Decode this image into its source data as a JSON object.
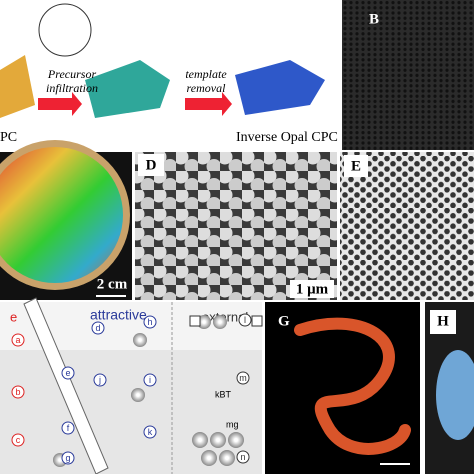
{
  "panel_a": {
    "step_1": [
      "Precursor",
      "infiltration"
    ],
    "step_2": [
      "template",
      "removal"
    ],
    "left_caption": "PC",
    "right_caption": "Inverse Opal CPC"
  },
  "panel_b": {
    "label": "B"
  },
  "panel_c": {
    "scale_bar": "2 cm"
  },
  "panel_d": {
    "label": "D",
    "scale_bar": "1 μm"
  },
  "panel_e": {
    "label": "E"
  },
  "panel_f": {
    "headings": [
      "e",
      "attractive",
      "external"
    ],
    "letters": [
      "a",
      "b",
      "c",
      "d",
      "e",
      "f",
      "g",
      "h",
      "i",
      "j",
      "k",
      "l",
      "m",
      "n"
    ],
    "symbols": [
      "kBT",
      "mg"
    ]
  },
  "panel_g": {
    "label": "G"
  },
  "panel_h": {
    "label": "H"
  }
}
